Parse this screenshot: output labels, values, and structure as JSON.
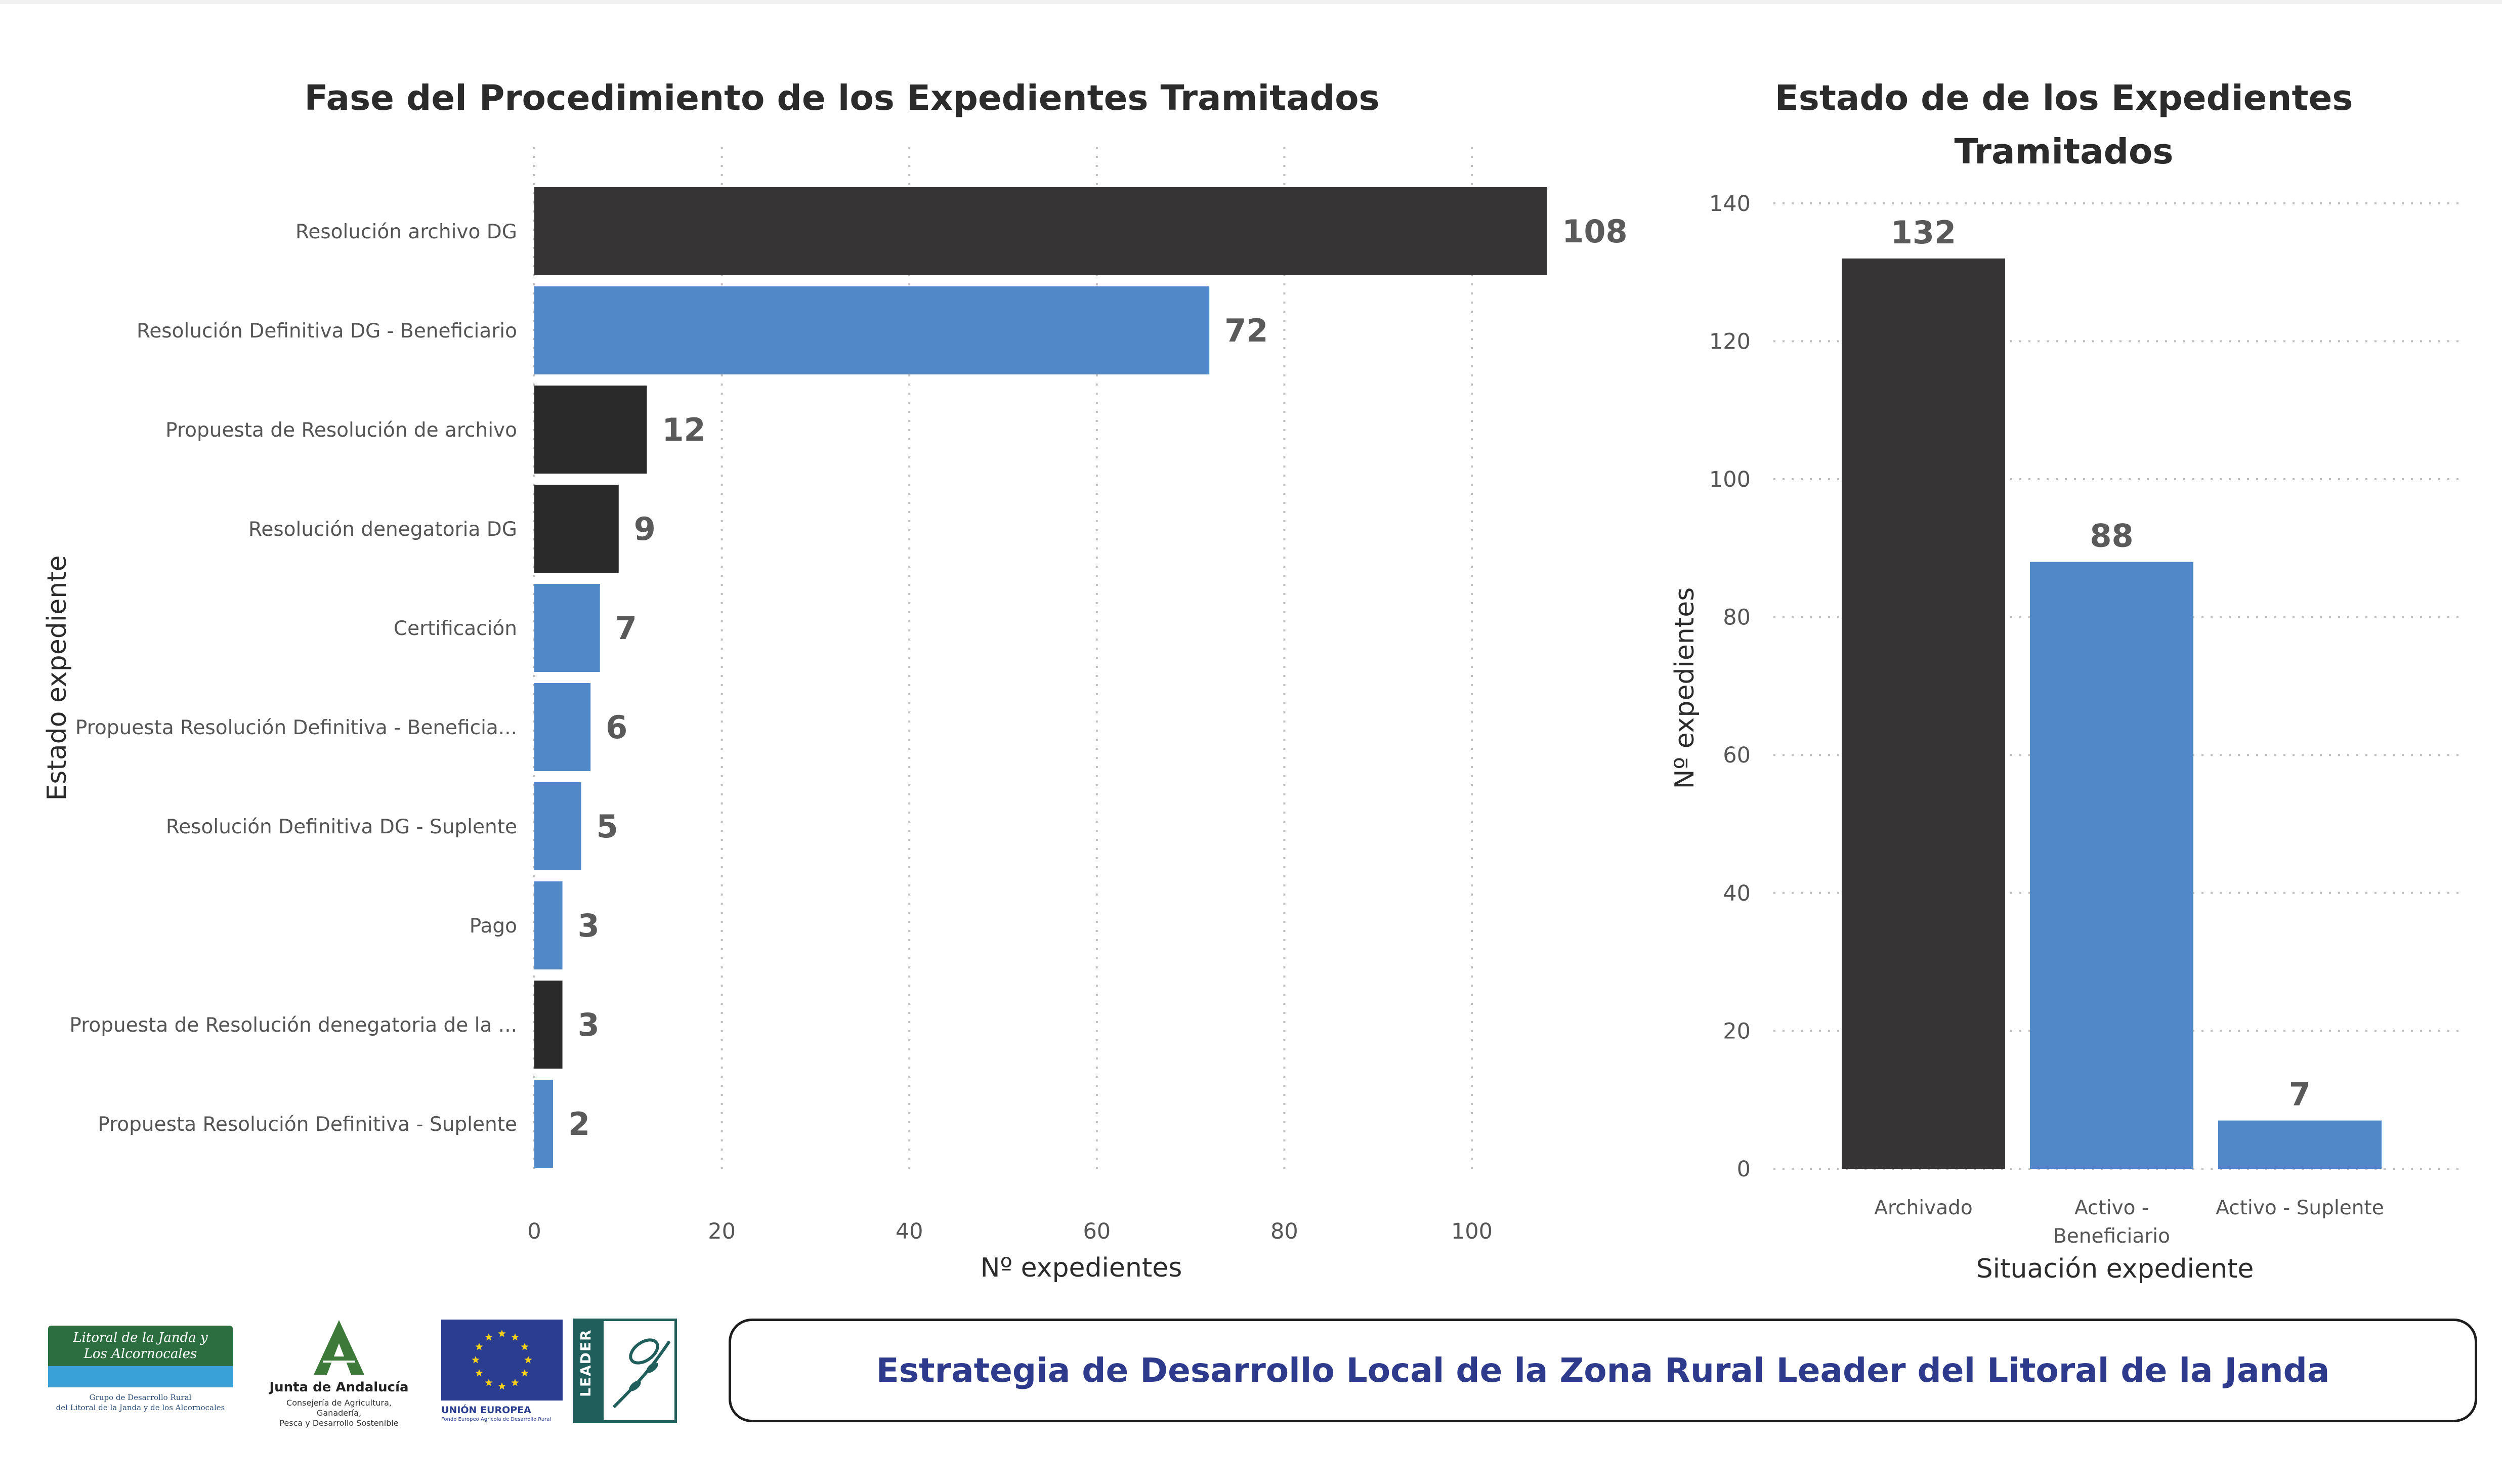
{
  "chart_data": [
    {
      "type": "bar",
      "orientation": "horizontal",
      "title": "Fase del Procedimiento de los Expedientes Tramitados",
      "xlabel": "Nº expedientes",
      "ylabel": "Estado expediente",
      "xlim": [
        0,
        108
      ],
      "xticks": [
        0,
        20,
        40,
        60,
        80,
        100
      ],
      "grid": true,
      "categories": [
        "Resolución archivo DG",
        "Resolución Definitiva DG - Beneficiario",
        "Propuesta de Resolución de archivo",
        "Resolución denegatoria DG",
        "Certificación",
        "Propuesta Resolución Definitiva - Beneficia...",
        "Resolución Definitiva DG - Suplente",
        "Pago",
        "Propuesta de Resolución denegatoria de la ...",
        "Propuesta Resolución Definitiva - Suplente"
      ],
      "values": [
        108,
        72,
        12,
        9,
        7,
        6,
        5,
        3,
        3,
        2
      ],
      "bar_colors": [
        "#373435",
        "#5088c8",
        "#2a2a2a",
        "#2a2a2a",
        "#5088c8",
        "#5088c8",
        "#5088c8",
        "#5088c8",
        "#2a2a2a",
        "#5088c8"
      ]
    },
    {
      "type": "bar",
      "orientation": "vertical",
      "title": "Estado de de los Expedientes Tramitados",
      "title_lines": [
        "Estado de de los Expedientes",
        "Tramitados"
      ],
      "xlabel": "Situación expediente",
      "ylabel": "Nº expedientes",
      "ylim": [
        0,
        140
      ],
      "yticks": [
        0,
        20,
        40,
        60,
        80,
        100,
        120,
        140
      ],
      "grid": true,
      "categories": [
        "Archivado",
        "Activo - Beneficiario",
        "Activo - Suplente"
      ],
      "category_lines": [
        [
          "Archivado"
        ],
        [
          "Activo -",
          "Beneficiario"
        ],
        [
          "Activo - Suplente"
        ]
      ],
      "values": [
        132,
        88,
        7
      ],
      "bar_colors": [
        "#373435",
        "#5088c8",
        "#5088c8"
      ]
    }
  ],
  "footer": {
    "banner": "Estrategia de Desarrollo Local de la Zona Rural Leader del Litoral de la Janda",
    "logos": {
      "gdr": {
        "title_line1": "Litoral de la Janda y",
        "title_line2": "Los Alcornocales",
        "sub_line1": "Grupo de Desarrollo Rural",
        "sub_line2": "del Litoral de la Janda y de los Alcornocales"
      },
      "junta": {
        "name": "Junta de Andalucía",
        "sub_line1": "Consejería de Agricultura, Ganadería,",
        "sub_line2": "Pesca y Desarrollo Sostenible"
      },
      "eu": {
        "name": "UNIÓN EUROPEA",
        "sub": "Fondo Europeo Agrícola de Desarrollo Rural"
      },
      "leader": {
        "name": "LEADER"
      }
    }
  }
}
